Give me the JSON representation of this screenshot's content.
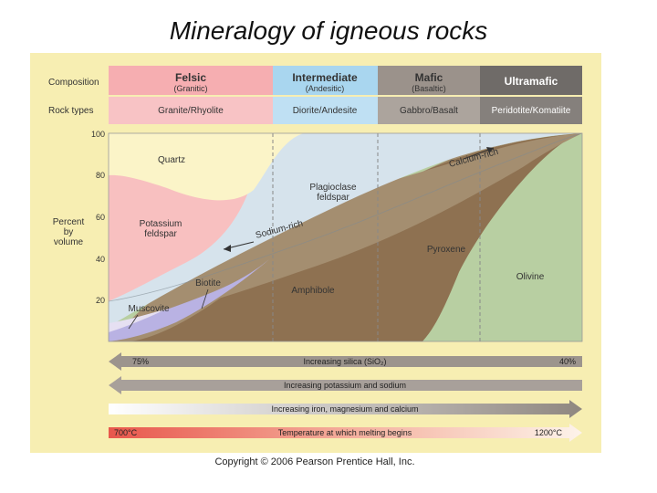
{
  "title": "Mineralogy of igneous rocks",
  "copyright": "Copyright © 2006 Pearson Prentice Hall, Inc.",
  "rows": {
    "composition": "Composition",
    "rock_types": "Rock types"
  },
  "columns": [
    {
      "name": "Felsic",
      "sub": "(Granitic)",
      "rock": "Granite/Rhyolite"
    },
    {
      "name": "Intermediate",
      "sub": "(Andesitic)",
      "rock": "Diorite/Andesite"
    },
    {
      "name": "Mafic",
      "sub": "(Basaltic)",
      "rock": "Gabbro/Basalt"
    },
    {
      "name": "Ultramafic",
      "sub": "",
      "rock": "Peridotite/Komatiite"
    }
  ],
  "y_axis": {
    "label_lines": [
      "Percent",
      "by",
      "volume"
    ],
    "ticks": [
      "100",
      "80",
      "60",
      "40",
      "20"
    ]
  },
  "minerals": {
    "quartz": "Quartz",
    "potassium_feldspar": [
      "Potassium",
      "feldspar"
    ],
    "plagioclase": [
      "Plagioclase",
      "feldspar"
    ],
    "calcium_rich": "Calcium-rich",
    "sodium_rich": "Sodium-rich",
    "biotite": "Biotite",
    "muscovite": "Muscovite",
    "amphibole": "Amphibole",
    "pyroxene": "Pyroxene",
    "olivine": "Olivine"
  },
  "arrows": {
    "silica": {
      "left": "75%",
      "label": "Increasing silica (SiO₂)",
      "right": "40%"
    },
    "potassium": "Increasing potassium and sodium",
    "iron": "Increasing iron, magnesium and calcium",
    "temperature": {
      "left": "700°C",
      "label": "Temperature at which melting begins",
      "right": "1200°C"
    }
  },
  "colors": {
    "background": "#f7eeb2",
    "felsic": "#f6aeb1",
    "intermediate": "#a9d6ef",
    "mafic": "#9b928b",
    "ultramafic": "#6f6b68",
    "quartz": "#fbf4c8",
    "potassium_feldspar": "#f8c0c0",
    "plagioclase": "#d6e3ec",
    "biotite": "#b9b2e3",
    "amphibole": "#a48e70",
    "pyroxene": "#8e7151",
    "olivine": "#b8cfa2"
  }
}
